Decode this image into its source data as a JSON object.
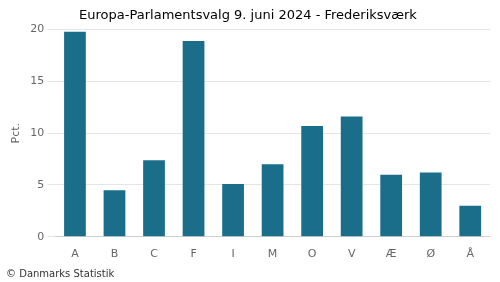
{
  "chart_data": {
    "type": "bar",
    "title": "Europa-Parlamentsvalg 9. juni 2024 - Frederiksværk",
    "categories": [
      "A",
      "B",
      "C",
      "F",
      "I",
      "M",
      "O",
      "V",
      "Æ",
      "Ø",
      "Å"
    ],
    "values": [
      19.8,
      4.5,
      7.4,
      18.9,
      5.1,
      7.0,
      10.7,
      11.6,
      6.0,
      6.2,
      3.0
    ],
    "color": "#1a6e8a",
    "ylabel": "Pct.",
    "ylim": [
      0,
      20
    ],
    "yticks": [
      0,
      5,
      10,
      15,
      20
    ],
    "grid": true,
    "annotations": [
      "© Danmarks Statistik"
    ]
  }
}
